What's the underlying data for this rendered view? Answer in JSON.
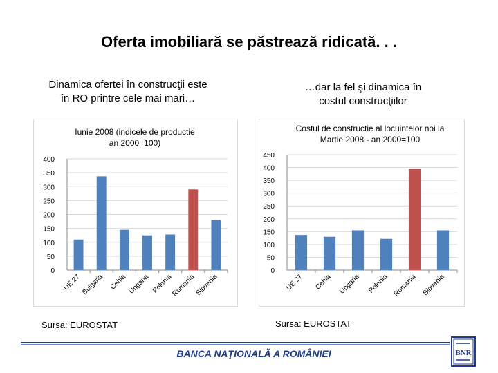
{
  "slide": {
    "title": "Oferta imobiliară se păstrează ridicată. . .",
    "left_heading": [
      "Dinamica ofertei în construcţii este",
      "în RO printre cele mai mari…"
    ],
    "right_heading": [
      "…dar la fel şi dinamica în",
      "costul construcţiilor"
    ],
    "left_source": "Sursa: EUROSTAT",
    "right_source": "Sursa: EUROSTAT",
    "footer_bank": "BANCA NAŢIONALĂ A ROMÂNIEI",
    "logo_text": "BNR"
  },
  "colors": {
    "bar": "#4f81bd",
    "highlight": "#c0504d",
    "grid": "#d9d9d9",
    "footer": "#1f3b8c"
  },
  "chart_data": [
    {
      "type": "bar",
      "title": [
        "Iunie 2008 (indicele de productie",
        "an 2000=100)"
      ],
      "categories": [
        "UE 27",
        "Bulgaria",
        "Cehia",
        "Ungaria",
        "Polonia",
        "Romania",
        "Slovenia"
      ],
      "values": [
        110,
        337,
        145,
        125,
        128,
        290,
        180
      ],
      "highlight_index": 5,
      "xlabel": "",
      "ylabel": "",
      "ylim": [
        0,
        400
      ],
      "yticks": [
        "0",
        "50",
        "100",
        "150",
        "200",
        "250",
        "300",
        "350",
        "400"
      ],
      "grid": true
    },
    {
      "type": "bar",
      "title": [
        "Costul de constructie al locuintelor noi la",
        "Martie 2008 - an 2000=100"
      ],
      "categories": [
        "UE 27",
        "Cehia",
        "Ungaria",
        "Polonia",
        "Romania",
        "Slovenia"
      ],
      "values": [
        137,
        130,
        155,
        122,
        395,
        155
      ],
      "highlight_index": 4,
      "xlabel": "",
      "ylabel": "",
      "ylim": [
        0,
        450
      ],
      "yticks": [
        "0",
        "50",
        "100",
        "150",
        "200",
        "250",
        "300",
        "350",
        "400",
        "450"
      ],
      "grid": true
    }
  ]
}
